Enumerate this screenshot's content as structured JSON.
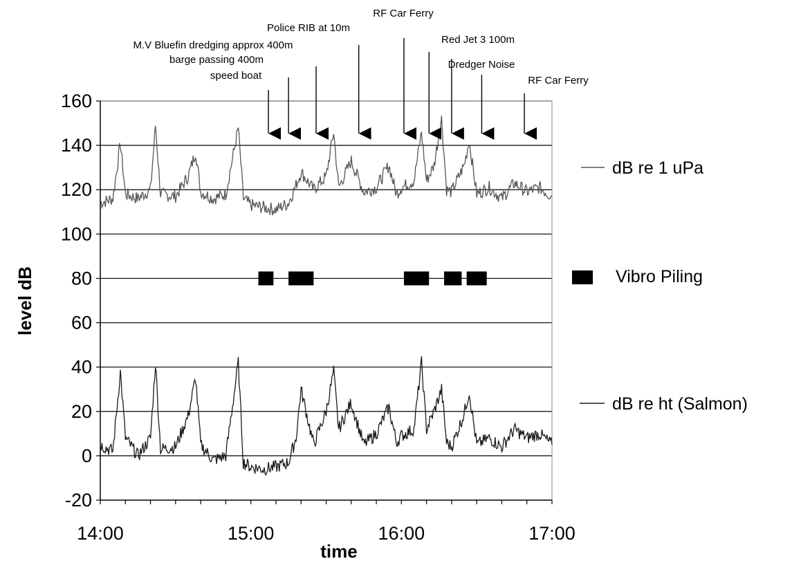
{
  "chart_data": {
    "type": "line",
    "xlabel": "time",
    "ylabel": "level dB",
    "ylim": [
      -20,
      160
    ],
    "yticks": [
      -20,
      0,
      20,
      40,
      60,
      80,
      100,
      120,
      140,
      160
    ],
    "xlim": [
      "14:00",
      "17:00"
    ],
    "xticks": [
      "14:00",
      "15:00",
      "16:00",
      "17:00"
    ],
    "x_minor_ticks_minutes": 10,
    "grid": "horizontal",
    "legend_position": "right",
    "series": [
      {
        "name": "dB re 1 uPa",
        "color": "#555555",
        "baseline": 115,
        "points": [
          [
            "14:00",
            114
          ],
          [
            "14:05",
            116
          ],
          [
            "14:08",
            141
          ],
          [
            "14:10",
            118
          ],
          [
            "14:15",
            116
          ],
          [
            "14:20",
            120
          ],
          [
            "14:22",
            149
          ],
          [
            "14:24",
            118
          ],
          [
            "14:30",
            117
          ],
          [
            "14:35",
            126
          ],
          [
            "14:38",
            137
          ],
          [
            "14:40",
            119
          ],
          [
            "14:45",
            116
          ],
          [
            "14:50",
            118
          ],
          [
            "14:55",
            148
          ],
          [
            "14:57",
            116
          ],
          [
            "15:00",
            113
          ],
          [
            "15:05",
            112
          ],
          [
            "15:10",
            111
          ],
          [
            "15:15",
            114
          ],
          [
            "15:18",
            122
          ],
          [
            "15:20",
            128
          ],
          [
            "15:25",
            120
          ],
          [
            "15:30",
            126
          ],
          [
            "15:33",
            146
          ],
          [
            "15:35",
            121
          ],
          [
            "15:40",
            133
          ],
          [
            "15:45",
            119
          ],
          [
            "15:50",
            121
          ],
          [
            "15:55",
            131
          ],
          [
            "15:58",
            118
          ],
          [
            "16:00",
            121
          ],
          [
            "16:05",
            124
          ],
          [
            "16:08",
            146
          ],
          [
            "16:10",
            124
          ],
          [
            "16:13",
            131
          ],
          [
            "16:16",
            152
          ],
          [
            "16:18",
            120
          ],
          [
            "16:20",
            119
          ],
          [
            "16:25",
            131
          ],
          [
            "16:27",
            142
          ],
          [
            "16:30",
            118
          ],
          [
            "16:35",
            121
          ],
          [
            "16:40",
            116
          ],
          [
            "16:45",
            123
          ],
          [
            "16:50",
            119
          ],
          [
            "16:55",
            121
          ],
          [
            "17:00",
            117
          ]
        ]
      },
      {
        "name": "dB re ht (Salmon)",
        "color": "#1a1a1a",
        "baseline": 0,
        "points": [
          [
            "14:00",
            5
          ],
          [
            "14:05",
            2
          ],
          [
            "14:08",
            38
          ],
          [
            "14:10",
            8
          ],
          [
            "14:15",
            0
          ],
          [
            "14:20",
            8
          ],
          [
            "14:22",
            42
          ],
          [
            "14:24",
            3
          ],
          [
            "14:30",
            4
          ],
          [
            "14:35",
            18
          ],
          [
            "14:38",
            35
          ],
          [
            "14:40",
            5
          ],
          [
            "14:45",
            -2
          ],
          [
            "14:50",
            0
          ],
          [
            "14:55",
            42
          ],
          [
            "14:57",
            -3
          ],
          [
            "15:00",
            -5
          ],
          [
            "15:05",
            -6
          ],
          [
            "15:10",
            -5
          ],
          [
            "15:15",
            -3
          ],
          [
            "15:18",
            8
          ],
          [
            "15:20",
            30
          ],
          [
            "15:25",
            5
          ],
          [
            "15:30",
            20
          ],
          [
            "15:33",
            38
          ],
          [
            "15:35",
            12
          ],
          [
            "15:40",
            24
          ],
          [
            "15:45",
            5
          ],
          [
            "15:50",
            10
          ],
          [
            "15:55",
            22
          ],
          [
            "15:58",
            6
          ],
          [
            "16:00",
            9
          ],
          [
            "16:05",
            12
          ],
          [
            "16:08",
            42
          ],
          [
            "16:10",
            12
          ],
          [
            "16:13",
            20
          ],
          [
            "16:16",
            30
          ],
          [
            "16:18",
            6
          ],
          [
            "16:20",
            4
          ],
          [
            "16:25",
            19
          ],
          [
            "16:27",
            29
          ],
          [
            "16:30",
            5
          ],
          [
            "16:35",
            8
          ],
          [
            "16:40",
            4
          ],
          [
            "16:45",
            12
          ],
          [
            "16:50",
            8
          ],
          [
            "16:55",
            10
          ],
          [
            "17:00",
            5
          ]
        ]
      },
      {
        "name": "Vibro Piling",
        "color": "#000000",
        "type": "blocks",
        "value": 80,
        "intervals": [
          [
            "15:03",
            "15:09"
          ],
          [
            "15:15",
            "15:25"
          ],
          [
            "16:01",
            "16:11"
          ],
          [
            "16:17",
            "16:24"
          ],
          [
            "16:26",
            "16:34"
          ]
        ]
      }
    ],
    "annotations": [
      {
        "text": "M.V Bluefin dredging approx 400m",
        "time": "15:07"
      },
      {
        "text": "barge passing 400m",
        "time": "15:15"
      },
      {
        "text": "speed boat",
        "time": "15:26"
      },
      {
        "text": "Police RIB at 10m",
        "time": "15:43"
      },
      {
        "text": "RF Car Ferry",
        "time": "16:01"
      },
      {
        "text": "Red Jet 3 100m",
        "time": "16:11"
      },
      {
        "text": "Dredger Noise",
        "time": "16:20"
      },
      {
        "text": "RF Car Ferry",
        "time": "16:32"
      },
      {
        "text": "",
        "time": "16:49"
      }
    ]
  }
}
